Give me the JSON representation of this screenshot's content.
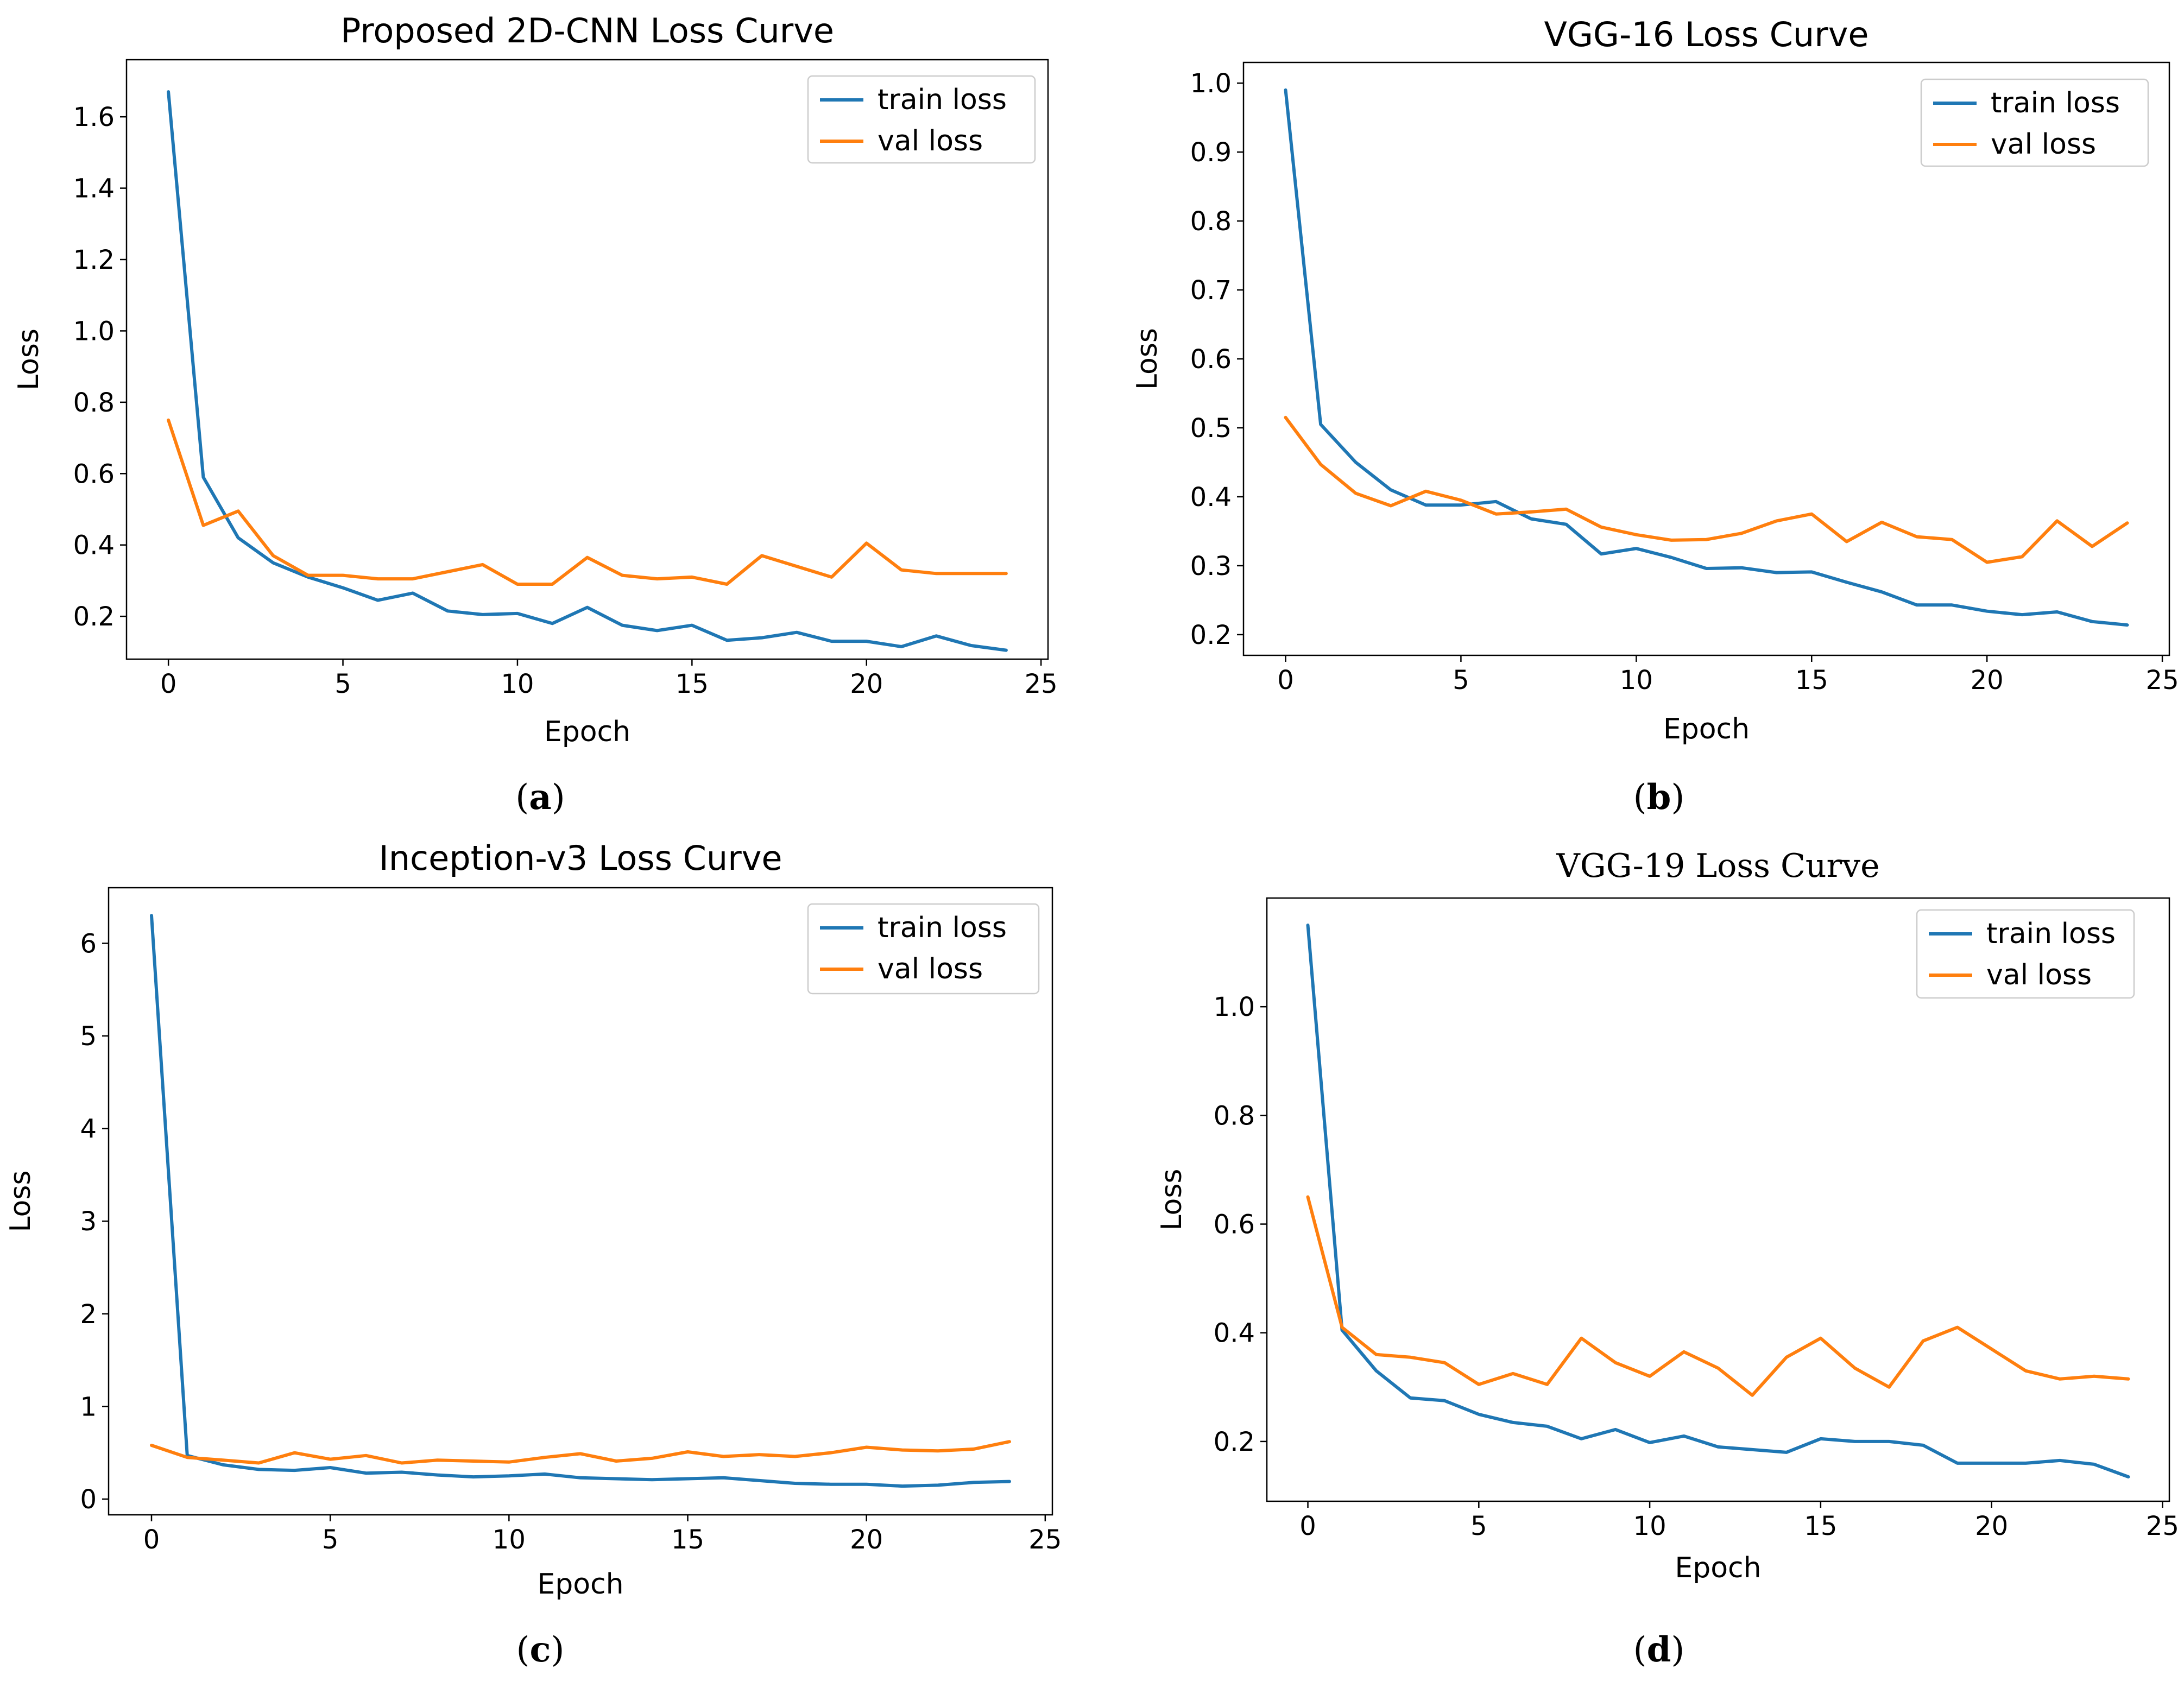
{
  "colors": {
    "train": "#1f77b4",
    "val": "#ff7f0e",
    "axis": "#000000",
    "background": "#ffffff"
  },
  "chart_data": [
    {
      "type": "line",
      "title": "Proposed 2D-CNN Loss Curve",
      "caption": "a",
      "xlabel": "Epoch",
      "ylabel": "Loss",
      "xlim": [
        -1.2,
        25.2
      ],
      "ylim": [
        0.08,
        1.76
      ],
      "xticks": [
        0,
        5,
        10,
        15,
        20,
        25
      ],
      "xtick_labels": [
        "0",
        "5",
        "10",
        "15",
        "20",
        "25"
      ],
      "yticks": [
        0.2,
        0.4,
        0.6,
        0.8,
        1.0,
        1.2,
        1.4,
        1.6
      ],
      "ytick_labels": [
        "0.2",
        "0.4",
        "0.6",
        "0.8",
        "1.0",
        "1.2",
        "1.4",
        "1.6"
      ],
      "legend_position": "top-right",
      "x": [
        0,
        1,
        2,
        3,
        4,
        5,
        6,
        7,
        8,
        9,
        10,
        11,
        12,
        13,
        14,
        15,
        16,
        17,
        18,
        19,
        20,
        21,
        22,
        23,
        24
      ],
      "series": [
        {
          "name": "train loss",
          "values": [
            1.67,
            0.59,
            0.42,
            0.35,
            0.31,
            0.28,
            0.245,
            0.265,
            0.215,
            0.205,
            0.208,
            0.18,
            0.225,
            0.175,
            0.16,
            0.175,
            0.133,
            0.14,
            0.155,
            0.13,
            0.13,
            0.115,
            0.145,
            0.118,
            0.105
          ]
        },
        {
          "name": "val loss",
          "values": [
            0.75,
            0.455,
            0.495,
            0.37,
            0.315,
            0.315,
            0.305,
            0.305,
            0.325,
            0.345,
            0.29,
            0.29,
            0.365,
            0.315,
            0.305,
            0.31,
            0.29,
            0.37,
            0.34,
            0.31,
            0.405,
            0.33,
            0.32,
            0.32,
            0.32
          ]
        }
      ]
    },
    {
      "type": "line",
      "title": "VGG-16 Loss Curve",
      "caption": "b",
      "xlabel": "Epoch",
      "ylabel": "Loss",
      "xlim": [
        -1.2,
        25.2
      ],
      "ylim": [
        0.17,
        1.03
      ],
      "xticks": [
        0,
        5,
        10,
        15,
        20,
        25
      ],
      "xtick_labels": [
        "0",
        "5",
        "10",
        "15",
        "20",
        "25"
      ],
      "yticks": [
        0.2,
        0.3,
        0.4,
        0.5,
        0.6,
        0.7,
        0.8,
        0.9,
        1.0
      ],
      "ytick_labels": [
        "0.2",
        "0.3",
        "0.4",
        "0.5",
        "0.6",
        "0.7",
        "0.8",
        "0.9",
        "1.0"
      ],
      "legend_position": "top-right",
      "x": [
        0,
        1,
        2,
        3,
        4,
        5,
        6,
        7,
        8,
        9,
        10,
        11,
        12,
        13,
        14,
        15,
        16,
        17,
        18,
        19,
        20,
        21,
        22,
        23,
        24
      ],
      "series": [
        {
          "name": "train loss",
          "values": [
            0.99,
            0.505,
            0.45,
            0.41,
            0.388,
            0.388,
            0.393,
            0.368,
            0.36,
            0.317,
            0.325,
            0.312,
            0.296,
            0.297,
            0.29,
            0.291,
            0.276,
            0.262,
            0.243,
            0.243,
            0.234,
            0.229,
            0.233,
            0.219,
            0.214
          ]
        },
        {
          "name": "val loss",
          "values": [
            0.515,
            0.447,
            0.405,
            0.387,
            0.408,
            0.395,
            0.375,
            0.378,
            0.382,
            0.356,
            0.345,
            0.337,
            0.338,
            0.347,
            0.365,
            0.375,
            0.335,
            0.363,
            0.342,
            0.338,
            0.305,
            0.313,
            0.365,
            0.328,
            0.362
          ]
        }
      ]
    },
    {
      "type": "line",
      "title": "Inception-v3 Loss Curve",
      "caption": "c",
      "xlabel": "Epoch",
      "ylabel": "Loss",
      "xlim": [
        -1.2,
        25.2
      ],
      "ylim": [
        -0.17,
        6.6
      ],
      "xticks": [
        0,
        5,
        10,
        15,
        20,
        25
      ],
      "xtick_labels": [
        "0",
        "5",
        "10",
        "15",
        "20",
        "25"
      ],
      "yticks": [
        0,
        1,
        2,
        3,
        4,
        5,
        6
      ],
      "ytick_labels": [
        "0",
        "1",
        "2",
        "3",
        "4",
        "5",
        "6"
      ],
      "legend_position": "top-right",
      "x": [
        0,
        1,
        2,
        3,
        4,
        5,
        6,
        7,
        8,
        9,
        10,
        11,
        12,
        13,
        14,
        15,
        16,
        17,
        18,
        19,
        20,
        21,
        22,
        23,
        24
      ],
      "series": [
        {
          "name": "train loss",
          "values": [
            6.3,
            0.47,
            0.37,
            0.32,
            0.31,
            0.34,
            0.28,
            0.29,
            0.26,
            0.24,
            0.25,
            0.27,
            0.23,
            0.22,
            0.21,
            0.22,
            0.23,
            0.2,
            0.17,
            0.16,
            0.16,
            0.14,
            0.15,
            0.18,
            0.19
          ]
        },
        {
          "name": "val loss",
          "values": [
            0.58,
            0.45,
            0.42,
            0.39,
            0.5,
            0.43,
            0.47,
            0.39,
            0.42,
            0.41,
            0.4,
            0.45,
            0.49,
            0.41,
            0.44,
            0.51,
            0.46,
            0.48,
            0.46,
            0.5,
            0.56,
            0.53,
            0.52,
            0.54,
            0.62
          ]
        }
      ]
    },
    {
      "type": "line",
      "title": "VGG-19 Loss Curve",
      "caption": "d",
      "xlabel": "Epoch",
      "ylabel": "Loss",
      "xlim": [
        -1.2,
        25.2
      ],
      "ylim": [
        0.09,
        1.2
      ],
      "xticks": [
        0,
        5,
        10,
        15,
        20,
        25
      ],
      "xtick_labels": [
        "0",
        "5",
        "10",
        "15",
        "20",
        "25"
      ],
      "yticks": [
        0.2,
        0.4,
        0.6,
        0.8,
        1.0
      ],
      "ytick_labels": [
        "0.2",
        "0.4",
        "0.6",
        "0.8",
        "1.0"
      ],
      "legend_position": "top-right",
      "x": [
        0,
        1,
        2,
        3,
        4,
        5,
        6,
        7,
        8,
        9,
        10,
        11,
        12,
        13,
        14,
        15,
        16,
        17,
        18,
        19,
        20,
        21,
        22,
        23,
        24
      ],
      "series": [
        {
          "name": "train loss",
          "values": [
            1.15,
            0.405,
            0.33,
            0.28,
            0.275,
            0.25,
            0.235,
            0.228,
            0.205,
            0.222,
            0.198,
            0.21,
            0.19,
            0.185,
            0.18,
            0.205,
            0.2,
            0.2,
            0.193,
            0.16,
            0.16,
            0.16,
            0.165,
            0.158,
            0.135
          ]
        },
        {
          "name": "val loss",
          "values": [
            0.65,
            0.41,
            0.36,
            0.355,
            0.345,
            0.305,
            0.325,
            0.305,
            0.39,
            0.345,
            0.32,
            0.365,
            0.335,
            0.285,
            0.355,
            0.39,
            0.335,
            0.3,
            0.385,
            0.41,
            0.37,
            0.33,
            0.315,
            0.32,
            0.315
          ]
        }
      ]
    }
  ]
}
